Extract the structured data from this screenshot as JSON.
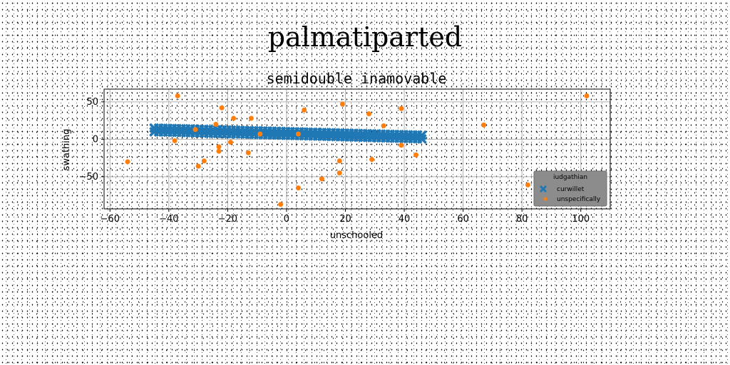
{
  "figure": {
    "suptitle": "palmatiparted"
  },
  "chart_data": {
    "type": "scatter",
    "title": "semidouble inamovable",
    "xlabel": "unschooled",
    "ylabel": "swathing",
    "xlim": [
      -62,
      110
    ],
    "ylim": [
      -93,
      67
    ],
    "xticks": [
      -60,
      -40,
      -20,
      0,
      20,
      40,
      60,
      80,
      100
    ],
    "yticks": [
      -50,
      0,
      50
    ],
    "grid": true,
    "legend": {
      "title": "iudgathian",
      "placement": "lower-right",
      "entries": [
        "curwillet",
        "unspecifically"
      ]
    },
    "series": [
      {
        "name": "curwillet",
        "marker": "X",
        "color": "#1f77b4",
        "line_fit": {
          "x_start": -45,
          "x_end": 46,
          "y_start": 12.5,
          "y_end": 3
        },
        "band_offsets": [
          -2.5,
          2.5
        ],
        "point_count": 60
      },
      {
        "name": "unspecifically",
        "marker": "o",
        "color": "#ff7f0e",
        "points": [
          [
            -54,
            -30
          ],
          [
            -37,
            58
          ],
          [
            -38,
            -2
          ],
          [
            -31,
            13
          ],
          [
            -30,
            -36
          ],
          [
            -28,
            -29
          ],
          [
            -24,
            20
          ],
          [
            -23,
            -10
          ],
          [
            -23,
            -16
          ],
          [
            -22,
            42
          ],
          [
            -19,
            -4
          ],
          [
            -18,
            28
          ],
          [
            -13,
            -18
          ],
          [
            -12,
            28
          ],
          [
            -9,
            7
          ],
          [
            -2,
            -87
          ],
          [
            4,
            7
          ],
          [
            4,
            -65
          ],
          [
            6,
            39
          ],
          [
            12,
            -53
          ],
          [
            18,
            -29
          ],
          [
            18,
            -45
          ],
          [
            19,
            47
          ],
          [
            28,
            34
          ],
          [
            29,
            -27
          ],
          [
            33,
            18
          ],
          [
            39,
            -8
          ],
          [
            39,
            41
          ],
          [
            44,
            -21
          ],
          [
            67,
            19
          ],
          [
            82,
            -61
          ],
          [
            102,
            58
          ]
        ]
      }
    ]
  }
}
